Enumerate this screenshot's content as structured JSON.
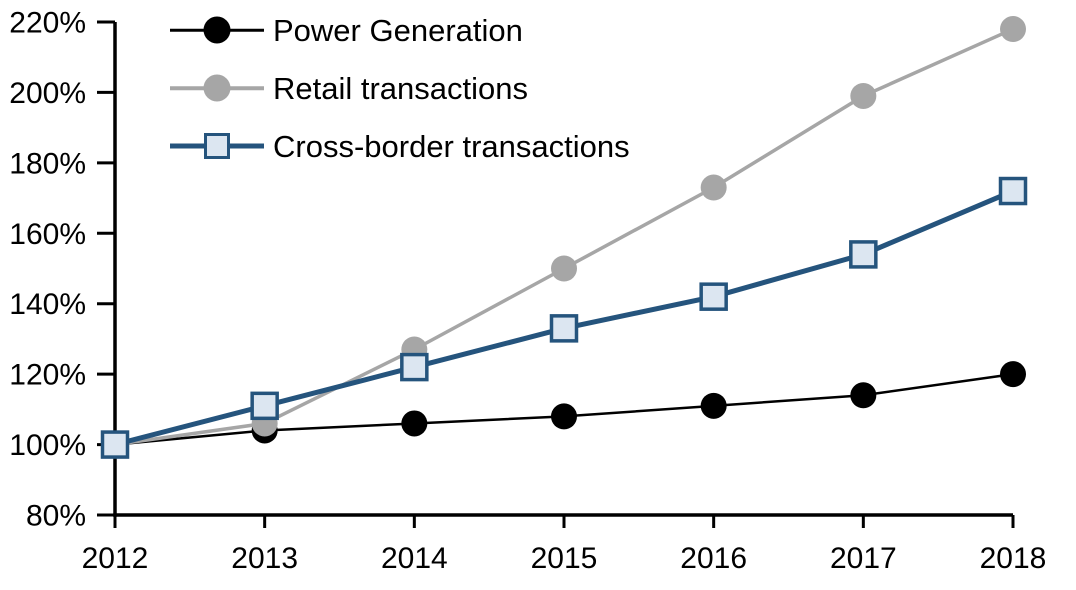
{
  "chart_data": {
    "type": "line",
    "x": [
      2012,
      2013,
      2014,
      2015,
      2016,
      2017,
      2018
    ],
    "x_tick_labels": [
      "2012",
      "2013",
      "2014",
      "2015",
      "2016",
      "2017",
      "2018"
    ],
    "ylim": [
      80,
      220
    ],
    "y_tick_step": 20,
    "y_ticks": [
      {
        "value": 80,
        "label": "80%"
      },
      {
        "value": 100,
        "label": "100%"
      },
      {
        "value": 120,
        "label": "120%"
      },
      {
        "value": 140,
        "label": "140%"
      },
      {
        "value": 160,
        "label": "160%"
      },
      {
        "value": 180,
        "label": "180%"
      },
      {
        "value": 200,
        "label": "200%"
      },
      {
        "value": 220,
        "label": "220%"
      }
    ],
    "grid": false,
    "legend_position": "top-left",
    "series": [
      {
        "id": "power-generation",
        "name": "Power Generation",
        "values": [
          100,
          104,
          106,
          108,
          111,
          114,
          120
        ],
        "color": "#000000",
        "marker": "circle",
        "marker_fill": "#000000",
        "line_width": 2.5
      },
      {
        "id": "retail-transactions",
        "name": "Retail transactions",
        "values": [
          100,
          106,
          127,
          150,
          173,
          199,
          218
        ],
        "color": "#A6A6A6",
        "marker": "circle",
        "marker_fill": "#A6A6A6",
        "line_width": 3.5
      },
      {
        "id": "cross-border-transactions",
        "name": "Cross-border transactions",
        "values": [
          100,
          111,
          122,
          133,
          142,
          154,
          172
        ],
        "color": "#25547D",
        "marker": "square",
        "marker_fill": "#DCE6F1",
        "line_width": 5
      }
    ],
    "colors": {
      "axis": "#000000",
      "background": "#FFFFFF"
    }
  }
}
